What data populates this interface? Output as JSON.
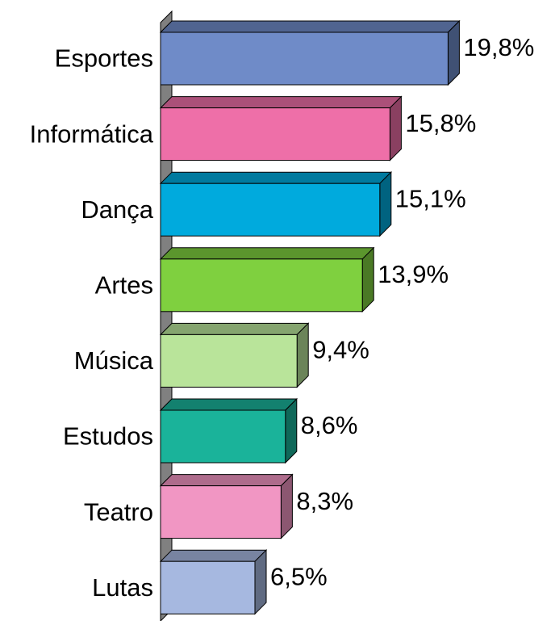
{
  "chart_data": {
    "type": "bar",
    "categories": [
      "Esportes",
      "Informática",
      "Dança",
      "Artes",
      "Música",
      "Estudos",
      "Teatro",
      "Lutas"
    ],
    "values": [
      19.8,
      15.8,
      15.1,
      13.9,
      9.4,
      8.6,
      8.3,
      6.5
    ],
    "value_labels": [
      "19,8%",
      "15,8%",
      "15,1%",
      "13,9%",
      "9,4%",
      "8,6%",
      "8,3%",
      "6,5%"
    ],
    "colors": [
      "#6f8bc8",
      "#ee6fa8",
      "#00aadd",
      "#7fd03f",
      "#b9e49a",
      "#1ab39a",
      "#f196c3",
      "#a6b8e0"
    ]
  }
}
